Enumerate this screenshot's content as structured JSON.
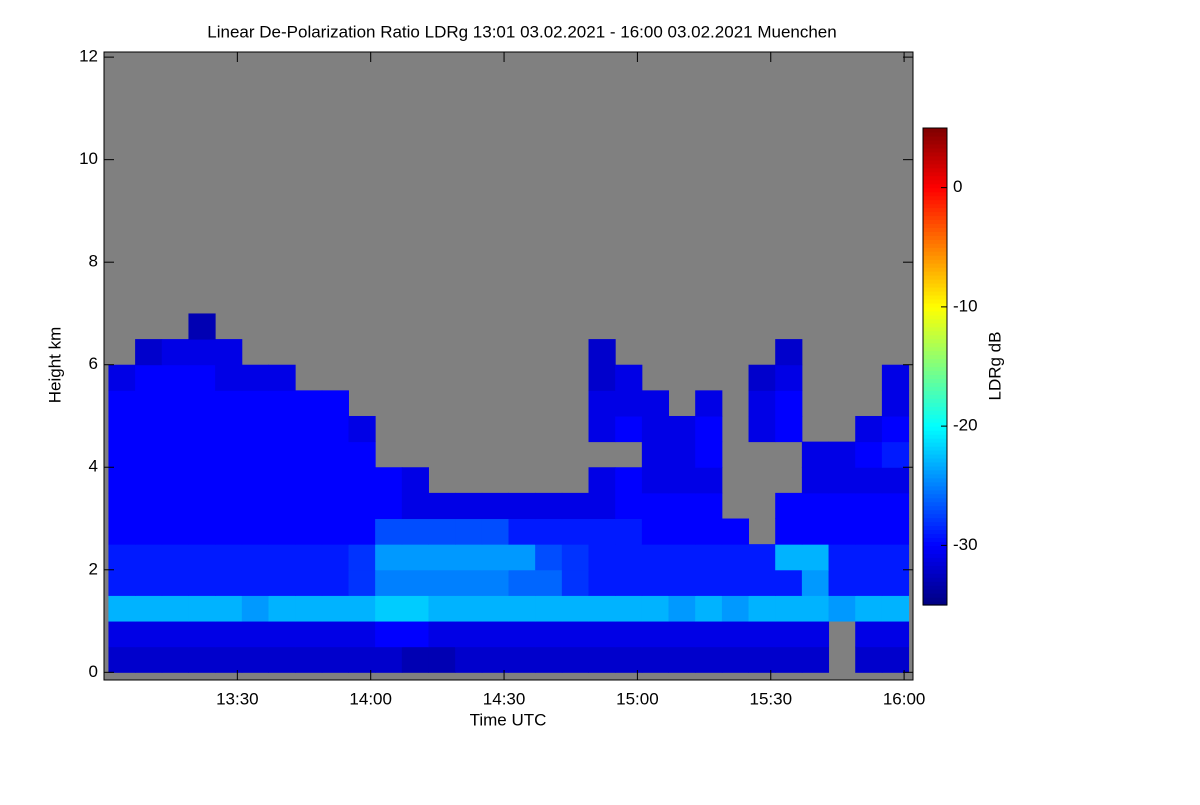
{
  "chart_data": {
    "type": "heatmap",
    "title": "Linear De-Polarization Ratio LDRg   13:01 03.02.2021 - 16:00 03.02.2021 Muenchen",
    "x_label": "Time UTC",
    "y_label": "Height km",
    "colorbar_label": "LDRg dB",
    "background_color": "#808080",
    "colormap": "jet",
    "xlim": [
      780,
      962
    ],
    "xticks": [
      {
        "value": 810,
        "label": "13:30"
      },
      {
        "value": 840,
        "label": "14:00"
      },
      {
        "value": 870,
        "label": "14:30"
      },
      {
        "value": 900,
        "label": "15:00"
      },
      {
        "value": 930,
        "label": "15:30"
      },
      {
        "value": 960,
        "label": "16:00"
      }
    ],
    "ylim": [
      -0.15,
      12.1
    ],
    "yticks": [
      0,
      2,
      4,
      6,
      8,
      10,
      12
    ],
    "zlim": [
      -35,
      5
    ],
    "zticks": [
      0,
      -10,
      -20,
      -30
    ],
    "x": [
      784,
      790,
      796,
      802,
      808,
      814,
      820,
      826,
      832,
      838,
      844,
      850,
      856,
      862,
      868,
      874,
      880,
      886,
      892,
      898,
      904,
      910,
      916,
      922,
      928,
      934,
      940,
      946,
      952,
      958
    ],
    "y": [
      0.25,
      0.75,
      1.25,
      1.75,
      2.25,
      2.75,
      3.25,
      3.75,
      4.25,
      4.75,
      5.25,
      5.75,
      6.25,
      6.75
    ],
    "z": [
      [
        -32,
        -32,
        -32,
        -32,
        -32,
        -32,
        -32,
        -32,
        -32,
        -32,
        -32,
        -33,
        -33,
        -32,
        -32,
        -32,
        -32,
        -32,
        -32,
        -32,
        -32,
        -32,
        -32,
        -32,
        -32,
        -32,
        -32,
        null,
        -32,
        -32
      ],
      [
        -31,
        -31,
        -31,
        -31,
        -31,
        -31,
        -31,
        -31,
        -31,
        -31,
        -30,
        -30,
        -31,
        -31,
        -31,
        -31,
        -31,
        -31,
        -31,
        -31,
        -31,
        -31,
        -31,
        -31,
        -31,
        -31,
        -31,
        null,
        -31,
        -31
      ],
      [
        -23,
        -23,
        -23,
        -23,
        -23,
        -24,
        -23,
        -23,
        -23,
        -23,
        -22,
        -22,
        -23,
        -23,
        -23,
        -23,
        -23,
        -23,
        -23,
        -23,
        -23,
        -24,
        -23,
        -24,
        -23,
        -23,
        -23,
        -24,
        -23,
        -23
      ],
      [
        -29,
        -29,
        -29,
        -29,
        -29,
        -29,
        -29,
        -29,
        -29,
        -28,
        -25,
        -25,
        -25,
        -25,
        -25,
        -26,
        -26,
        -28,
        -29,
        -29,
        -29,
        -29,
        -29,
        -29,
        -29,
        -29,
        -24,
        -29,
        -29,
        -29
      ],
      [
        -29,
        -29,
        -29,
        -29,
        -29,
        -29,
        -29,
        -29,
        -29,
        -28,
        -24,
        -24,
        -24,
        -24,
        -24,
        -24,
        -27,
        -28,
        -29,
        -29,
        -29,
        -29,
        -29,
        -29,
        -29,
        -23,
        -23,
        -29,
        -29,
        -29
      ],
      [
        -30,
        -30,
        -30,
        -30,
        -30,
        -30,
        -30,
        -30,
        -30,
        -30,
        -27,
        -27,
        -27,
        -27,
        -27,
        -29,
        -29,
        -29,
        -29,
        -29,
        -30,
        -30,
        -30,
        -30,
        null,
        -30,
        -30,
        -30,
        -30,
        -30
      ],
      [
        -30,
        -30,
        -30,
        -30,
        -30,
        -30,
        -30,
        -30,
        -30,
        -30,
        -30,
        -31,
        -31,
        -31,
        -31,
        -31,
        -31,
        -31,
        -31,
        -30,
        -30,
        -30,
        -30,
        null,
        null,
        -30,
        -30,
        -30,
        -30,
        -30
      ],
      [
        -30,
        -30,
        -30,
        -30,
        -30,
        -30,
        -30,
        -30,
        -30,
        -30,
        -30,
        -31,
        null,
        null,
        null,
        null,
        null,
        null,
        -31,
        -30,
        -31,
        -31,
        -31,
        null,
        null,
        null,
        -31,
        -31,
        -31,
        -31
      ],
      [
        -30,
        -30,
        -30,
        -30,
        -30,
        -30,
        -30,
        -30,
        -30,
        -30,
        null,
        null,
        null,
        null,
        null,
        null,
        null,
        null,
        null,
        null,
        -31,
        -31,
        -30,
        null,
        null,
        null,
        -31,
        -31,
        -30,
        -29
      ],
      [
        -30,
        -30,
        -30,
        -30,
        -30,
        -30,
        -30,
        -30,
        -30,
        -31,
        null,
        null,
        null,
        null,
        null,
        null,
        null,
        null,
        -31,
        -30,
        -31,
        -31,
        -30,
        null,
        -31,
        -30,
        null,
        null,
        -31,
        -30
      ],
      [
        -30,
        -30,
        -30,
        -30,
        -30,
        -30,
        -30,
        -30,
        -30,
        null,
        null,
        null,
        null,
        null,
        null,
        null,
        null,
        null,
        -31,
        -31,
        -31,
        null,
        -31,
        null,
        -31,
        -30,
        null,
        null,
        null,
        -31
      ],
      [
        -31,
        -30,
        -30,
        -30,
        -31,
        -31,
        -31,
        null,
        null,
        null,
        null,
        null,
        null,
        null,
        null,
        null,
        null,
        null,
        -32,
        -31,
        null,
        null,
        null,
        null,
        -32,
        -31,
        null,
        null,
        null,
        -31
      ],
      [
        null,
        -32,
        -31,
        -31,
        -31,
        null,
        null,
        null,
        null,
        null,
        null,
        null,
        null,
        null,
        null,
        null,
        null,
        null,
        -32,
        null,
        null,
        null,
        null,
        null,
        null,
        -32,
        null,
        null,
        null,
        null
      ],
      [
        null,
        null,
        null,
        -33,
        null,
        null,
        null,
        null,
        null,
        null,
        null,
        null,
        null,
        null,
        null,
        null,
        null,
        null,
        null,
        null,
        null,
        null,
        null,
        null,
        null,
        null,
        null,
        null,
        null,
        null
      ]
    ]
  }
}
